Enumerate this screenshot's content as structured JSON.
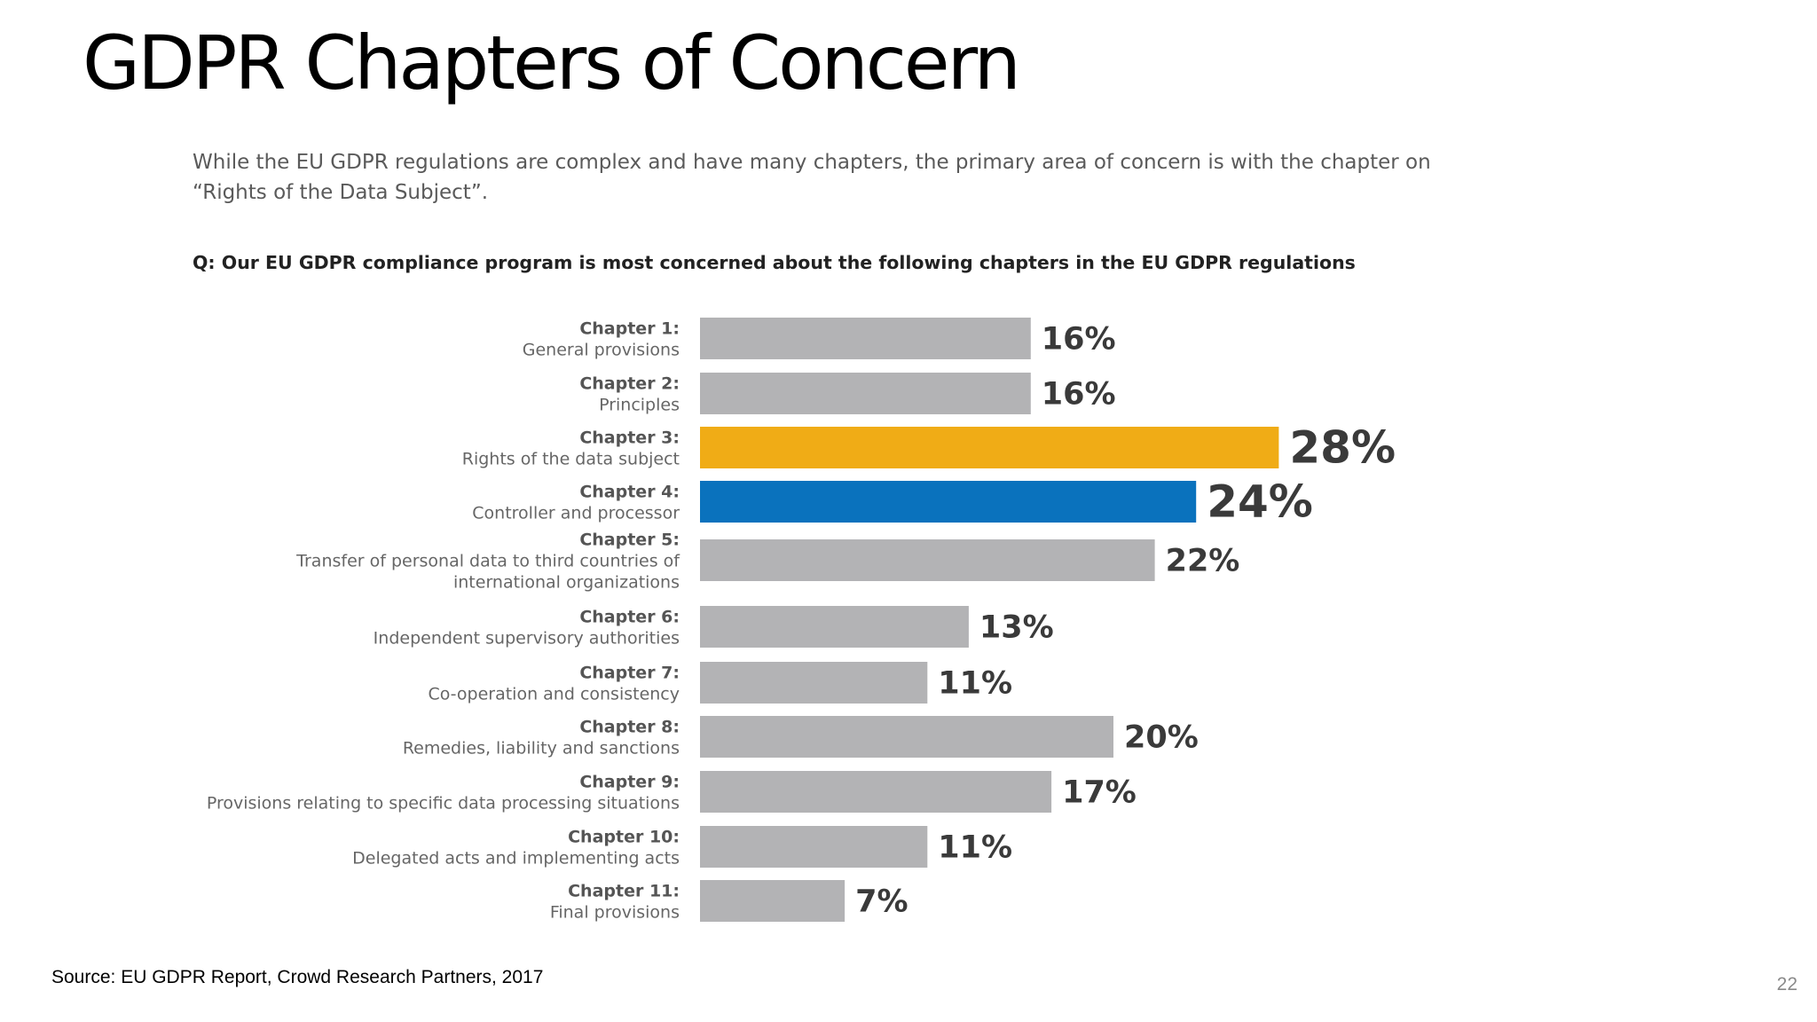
{
  "slide": {
    "title": "GDPR Chapters of Concern",
    "intro": "While the EU GDPR regulations are complex and have many chapters, the primary area of concern is with the chapter on “Rights of the Data Subject”.",
    "question": "Q: Our EU GDPR compliance program is most concerned about the following chapters in the EU GDPR regulations",
    "source": "Source: EU GDPR Report, Crowd Research Partners, 2017",
    "page_number": "22"
  },
  "colors": {
    "default_bar": "#b3b3b5",
    "highlight_primary": "#f0ac16",
    "highlight_secondary": "#0a72bd",
    "value_text": "#3a3a3a"
  },
  "chart_data": {
    "type": "bar",
    "orientation": "horizontal",
    "unit": "%",
    "xlim": [
      0,
      40
    ],
    "grid": false,
    "legend": "none",
    "categories": [
      {
        "title": "Chapter 1:",
        "desc": [
          "General provisions"
        ],
        "value": 16,
        "label": "16%",
        "highlight": null
      },
      {
        "title": "Chapter 2:",
        "desc": [
          "Principles"
        ],
        "value": 16,
        "label": "16%",
        "highlight": null
      },
      {
        "title": "Chapter 3:",
        "desc": [
          "Rights of the data subject"
        ],
        "value": 28,
        "label": "28%",
        "highlight": "primary"
      },
      {
        "title": "Chapter 4:",
        "desc": [
          "Controller and processor"
        ],
        "value": 24,
        "label": "24%",
        "highlight": "secondary"
      },
      {
        "title": "Chapter 5:",
        "desc": [
          "Transfer of personal data to third countries of",
          "international organizations"
        ],
        "value": 22,
        "label": "22%",
        "highlight": null
      },
      {
        "title": "Chapter 6:",
        "desc": [
          "Independent supervisory authorities"
        ],
        "value": 13,
        "label": "13%",
        "highlight": null
      },
      {
        "title": "Chapter 7:",
        "desc": [
          "Co-operation and consistency"
        ],
        "value": 11,
        "label": "11%",
        "highlight": null
      },
      {
        "title": "Chapter 8:",
        "desc": [
          "Remedies, liability and sanctions"
        ],
        "value": 20,
        "label": "20%",
        "highlight": null
      },
      {
        "title": "Chapter 9:",
        "desc": [
          "Provisions relating to specific data processing situations"
        ],
        "value": 17,
        "label": "17%",
        "highlight": null
      },
      {
        "title": "Chapter 10:",
        "desc": [
          "Delegated acts and implementing acts"
        ],
        "value": 11,
        "label": "11%",
        "highlight": null
      },
      {
        "title": "Chapter 11:",
        "desc": [
          "Final provisions"
        ],
        "value": 7,
        "label": "7%",
        "highlight": null
      }
    ]
  }
}
